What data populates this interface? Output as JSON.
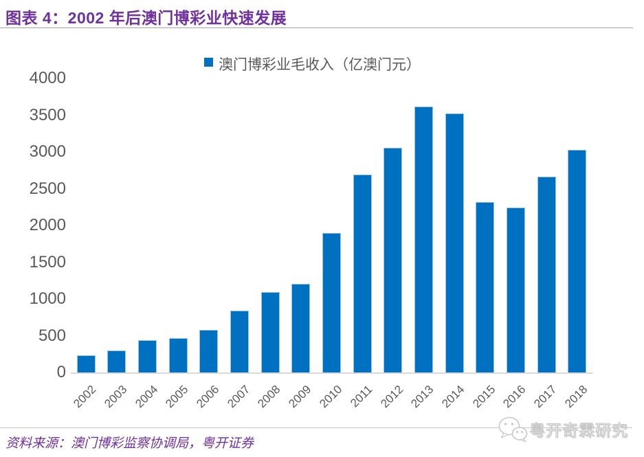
{
  "title": "图表 4：2002 年后澳门博彩业快速发展",
  "legend": {
    "label": "澳门博彩业毛收入（亿澳门元）"
  },
  "chart_data": {
    "type": "bar",
    "title": "图表 4：2002 年后澳门博彩业快速发展",
    "series_name": "澳门博彩业毛收入（亿澳门元）",
    "categories": [
      "2002",
      "2003",
      "2004",
      "2005",
      "2006",
      "2007",
      "2008",
      "2009",
      "2010",
      "2011",
      "2012",
      "2013",
      "2014",
      "2015",
      "2016",
      "2017",
      "2018"
    ],
    "values": [
      235,
      303,
      435,
      471,
      575,
      838,
      1098,
      1204,
      1896,
      2691,
      3052,
      3619,
      3527,
      2318,
      2242,
      2666,
      3028
    ],
    "xlabel": "",
    "ylabel": "",
    "ylim": [
      0,
      4000
    ],
    "ytick_step": 500,
    "grid": false,
    "legend_position": "top",
    "bar_color": "#0070C0",
    "bar_border_color": "#9DC3E6",
    "axis_text_color": "#595959",
    "axis_line_color": "#D9D9D9"
  },
  "colors": {
    "accent_purple": "#7030A0",
    "bar_blue": "#0070C0",
    "axis_text": "#595959"
  },
  "footer": {
    "source": "资料来源：澳门博彩监察协调局，粤开证券",
    "watermark_text": "粤开奇霖研究"
  }
}
